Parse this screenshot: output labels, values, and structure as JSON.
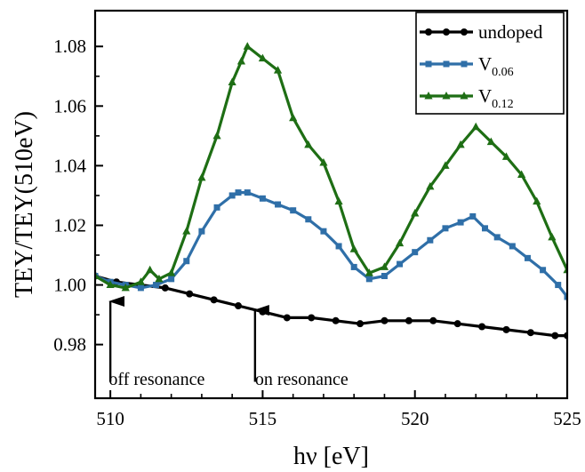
{
  "chart_data": {
    "type": "line",
    "xlabel": "hν [eV]",
    "ylabel": "TEY/TEY(510eV)",
    "xlim": [
      509.5,
      525
    ],
    "ylim": [
      0.962,
      1.092
    ],
    "xticks": [
      510,
      515,
      520,
      525
    ],
    "yticks": [
      0.98,
      1.0,
      1.02,
      1.04,
      1.06,
      1.08
    ],
    "ytick_labels": [
      "0.98",
      "1.00",
      "1.02",
      "1.04",
      "1.06",
      "1.08"
    ],
    "legend_position": "top-right",
    "series": [
      {
        "name": "undoped",
        "label_main": "undoped",
        "label_sub": "",
        "color": "#000000",
        "marker": "circle",
        "x": [
          509.5,
          510.2,
          511.0,
          511.8,
          512.6,
          513.4,
          514.2,
          515.0,
          515.8,
          516.6,
          517.4,
          518.2,
          519.0,
          519.8,
          520.6,
          521.4,
          522.2,
          523.0,
          523.8,
          524.6,
          525.0
        ],
        "y": [
          1.003,
          1.001,
          1.0,
          0.999,
          0.997,
          0.995,
          0.993,
          0.991,
          0.989,
          0.989,
          0.988,
          0.987,
          0.988,
          0.988,
          0.988,
          0.987,
          0.986,
          0.985,
          0.984,
          0.983,
          0.983
        ]
      },
      {
        "name": "V0.06",
        "label_main": "V",
        "label_sub": "0.06",
        "color": "#2f6fa8",
        "marker": "square",
        "x": [
          509.5,
          510.0,
          510.5,
          511.0,
          511.5,
          512.0,
          512.5,
          513.0,
          513.5,
          514.0,
          514.2,
          514.5,
          515.0,
          515.5,
          516.0,
          516.5,
          517.0,
          517.5,
          518.0,
          518.5,
          519.0,
          519.5,
          520.0,
          520.5,
          521.0,
          521.5,
          521.9,
          522.3,
          522.7,
          523.2,
          523.7,
          524.2,
          524.7,
          525.0
        ],
        "y": [
          1.003,
          1.001,
          1.0,
          0.999,
          1.0,
          1.002,
          1.008,
          1.018,
          1.026,
          1.03,
          1.031,
          1.031,
          1.029,
          1.027,
          1.025,
          1.022,
          1.018,
          1.013,
          1.006,
          1.002,
          1.003,
          1.007,
          1.011,
          1.015,
          1.019,
          1.021,
          1.023,
          1.019,
          1.016,
          1.013,
          1.009,
          1.005,
          1.0,
          0.996
        ]
      },
      {
        "name": "V0.12",
        "label_main": "V",
        "label_sub": "0.12",
        "color": "#1e6e14",
        "marker": "triangle",
        "x": [
          509.5,
          510.0,
          510.5,
          511.0,
          511.3,
          511.6,
          512.0,
          512.5,
          513.0,
          513.5,
          514.0,
          514.3,
          514.5,
          515.0,
          515.5,
          516.0,
          516.5,
          517.0,
          517.5,
          518.0,
          518.5,
          519.0,
          519.5,
          520.0,
          520.5,
          521.0,
          521.5,
          522.0,
          522.5,
          523.0,
          523.5,
          524.0,
          524.5,
          525.0
        ],
        "y": [
          1.003,
          1.0,
          0.999,
          1.001,
          1.005,
          1.002,
          1.004,
          1.018,
          1.036,
          1.05,
          1.068,
          1.075,
          1.08,
          1.076,
          1.072,
          1.056,
          1.047,
          1.041,
          1.028,
          1.012,
          1.004,
          1.006,
          1.014,
          1.024,
          1.033,
          1.04,
          1.047,
          1.053,
          1.048,
          1.043,
          1.037,
          1.028,
          1.016,
          1.005
        ]
      }
    ],
    "annotations": [
      {
        "text": "off resonance",
        "x": 510.0,
        "y_tip": 0.9945,
        "y_tail": 0.9675,
        "text_x": 509.95,
        "text_y": 0.9665
      },
      {
        "text": "on resonance",
        "x": 514.75,
        "y_tip": 0.9915,
        "y_tail": 0.9675,
        "text_x": 514.75,
        "text_y": 0.9665
      }
    ]
  }
}
